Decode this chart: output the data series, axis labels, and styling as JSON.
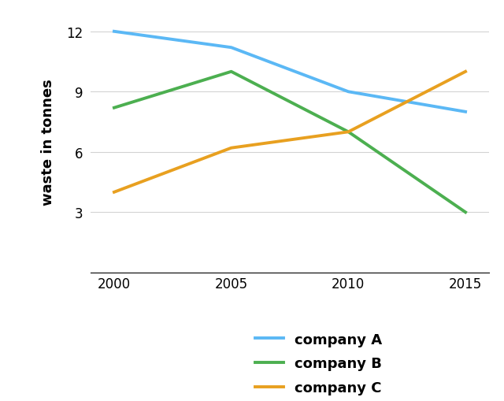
{
  "years": [
    2000,
    2005,
    2010,
    2015
  ],
  "company_A": [
    12.0,
    11.2,
    9.0,
    8.0
  ],
  "company_B": [
    8.2,
    10.0,
    7.0,
    3.0
  ],
  "company_C": [
    4.0,
    6.2,
    7.0,
    10.0
  ],
  "color_A": "#5BB8F5",
  "color_B": "#4CAF50",
  "color_C": "#E8A020",
  "ylabel": "waste in tonnes",
  "yticks": [
    3,
    6,
    9,
    12
  ],
  "xticks": [
    2000,
    2005,
    2010,
    2015
  ],
  "ylim": [
    0,
    13
  ],
  "xlim": [
    1999,
    2016
  ],
  "legend_labels": [
    "company A",
    "company B",
    "company C"
  ],
  "linewidth": 2.8,
  "ylabel_fontsize": 13,
  "tick_fontsize": 12,
  "legend_fontsize": 13
}
